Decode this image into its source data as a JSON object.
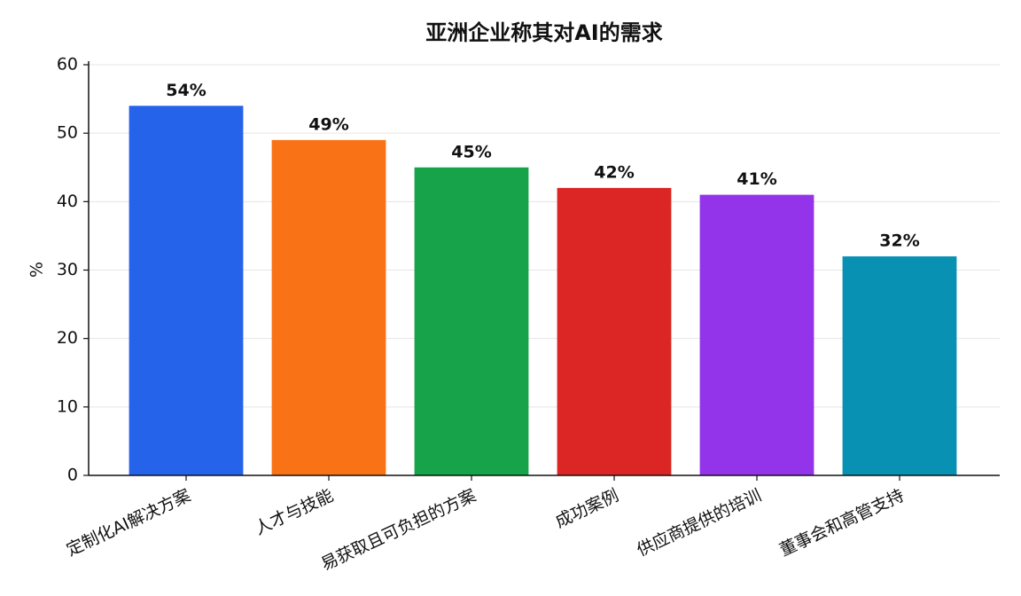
{
  "chart_data": {
    "type": "bar",
    "title": "亚洲企业称其对AI的需求",
    "ylabel": "%",
    "categories": [
      "定制化AI解决方案",
      "人才与技能",
      "易获取且可负担的方案",
      "成功案例",
      "供应商提供的培训",
      "董事会和高管支持"
    ],
    "values": [
      54,
      49,
      45,
      42,
      41,
      32
    ],
    "value_labels": [
      "54%",
      "49%",
      "45%",
      "42%",
      "41%",
      "32%"
    ],
    "colors": [
      "#2563eb",
      "#f97316",
      "#16a34a",
      "#dc2626",
      "#9333ea",
      "#0891b2"
    ],
    "ylim": [
      0,
      60
    ],
    "yticks": [
      0,
      10,
      20,
      30,
      40,
      50,
      60
    ],
    "grid": true
  }
}
